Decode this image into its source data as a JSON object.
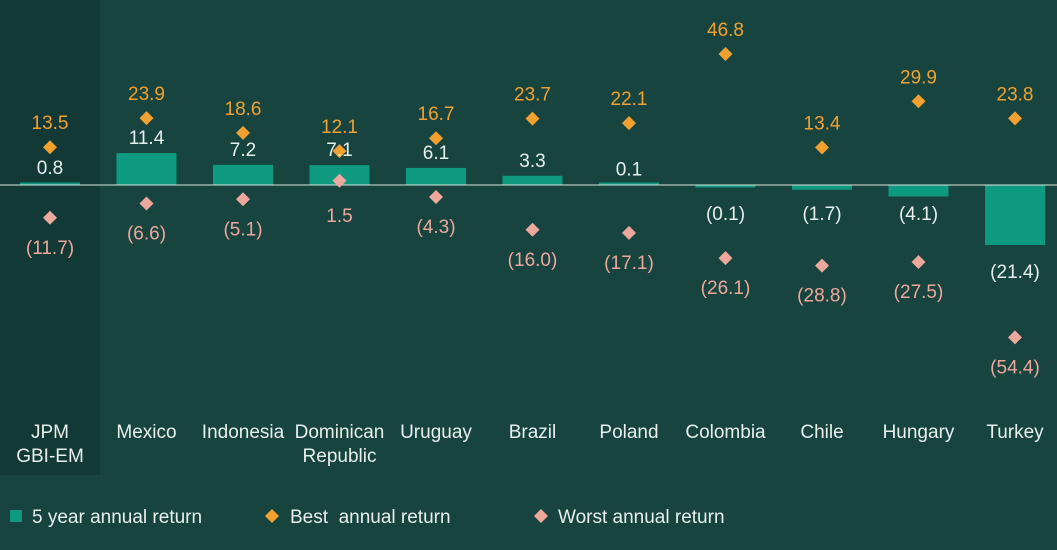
{
  "colors": {
    "background": "#17443F",
    "highlight_band": "#123935",
    "bar": "#0E9A80",
    "best": "#F2A130",
    "worst": "#EEA79C",
    "text": "#E8EFEC",
    "axis": "#DCE6E2"
  },
  "chart_data": {
    "type": "bar",
    "categories": [
      [
        "JPM",
        "GBI-EM"
      ],
      [
        "Mexico"
      ],
      [
        "Indonesia"
      ],
      [
        "Dominican",
        "Republic"
      ],
      [
        "Uruguay"
      ],
      [
        "Brazil"
      ],
      [
        "Poland"
      ],
      [
        "Colombia"
      ],
      [
        "Chile"
      ],
      [
        "Hungary"
      ],
      [
        "Turkey"
      ]
    ],
    "highlighted_category_index": 0,
    "series": [
      {
        "name": "5 year annual return",
        "kind": "bar",
        "values": [
          0.8,
          11.4,
          7.2,
          7.1,
          6.1,
          3.3,
          0.1,
          -0.1,
          -1.7,
          -4.1,
          -21.4
        ],
        "labels": [
          "0.8",
          "11.4",
          "7.2",
          "7.1",
          "6.1",
          "3.3",
          "0.1",
          "(0.1)",
          "(1.7)",
          "(4.1)",
          "(21.4)"
        ]
      },
      {
        "name": "Best  annual return",
        "kind": "marker",
        "values": [
          13.5,
          23.9,
          18.6,
          12.1,
          16.7,
          23.7,
          22.1,
          46.8,
          13.4,
          29.9,
          23.8
        ],
        "labels": [
          "13.5",
          "23.9",
          "18.6",
          "12.1",
          "16.7",
          "23.7",
          "22.1",
          "46.8",
          "13.4",
          "29.9",
          "23.8"
        ]
      },
      {
        "name": "Worst annual return",
        "kind": "marker",
        "values": [
          -11.7,
          -6.6,
          -5.1,
          1.5,
          -4.3,
          -16.0,
          -17.1,
          -26.1,
          -28.8,
          -27.5,
          -54.4
        ],
        "labels": [
          "(11.7)",
          "(6.6)",
          "(5.1)",
          "1.5",
          "(4.3)",
          "(16.0)",
          "(17.1)",
          "(26.1)",
          "(28.8)",
          "(27.5)",
          "(54.4)"
        ]
      }
    ],
    "ylim": [
      -60,
      50
    ],
    "grid": false,
    "legend_position": "bottom-left"
  }
}
